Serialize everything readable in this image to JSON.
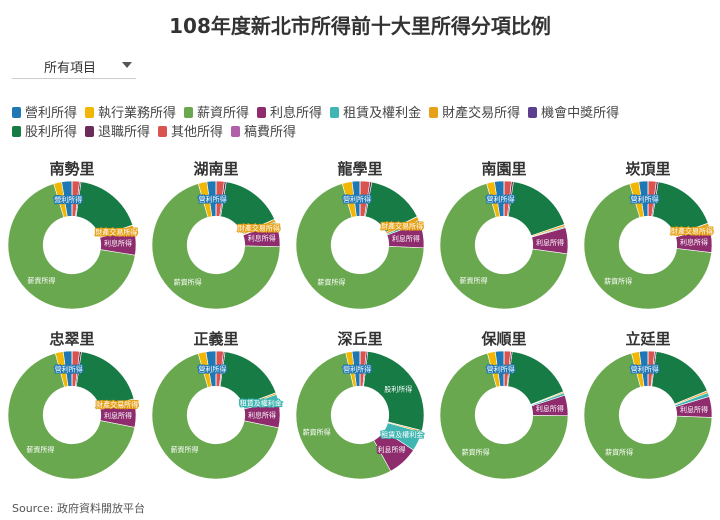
{
  "title": "108年度新北市所得前十大里所得分項比例",
  "dropdown": {
    "selected": "所有項目"
  },
  "source": "Source: 政府資料開放平台",
  "chart_data": {
    "type": "pie",
    "hole": 0.45,
    "legend_position": "top",
    "categories": [
      {
        "name": "營利所得",
        "color": "#1f77b4"
      },
      {
        "name": "執行業務所得",
        "color": "#f2b705"
      },
      {
        "name": "薪資所得",
        "color": "#6aa84f"
      },
      {
        "name": "利息所得",
        "color": "#8e2c6e"
      },
      {
        "name": "租賃及權利金",
        "color": "#3fb6b2"
      },
      {
        "name": "財產交易所得",
        "color": "#e6a118"
      },
      {
        "name": "機會中獎所得",
        "color": "#5b3f8e"
      },
      {
        "name": "股利所得",
        "color": "#167b45"
      },
      {
        "name": "退職所得",
        "color": "#6b2c5a"
      },
      {
        "name": "其他所得",
        "color": "#d9534f"
      },
      {
        "name": "稿費所得",
        "color": "#b05fa8"
      }
    ],
    "charts": [
      {
        "name": "南勢里",
        "values": [
          2.6,
          2.0,
          67.5,
          6.7,
          0.2,
          0.6,
          0.05,
          17.6,
          0.4,
          1.8,
          0.05
        ],
        "labels": [
          {
            "category": "營利所得",
            "text": "營利所得"
          },
          {
            "category": "薪資所得",
            "text": "薪資所得"
          },
          {
            "category": "利息所得",
            "text": "利息所得"
          },
          {
            "category": "財產交易所得",
            "text": "財產交易所得"
          }
        ]
      },
      {
        "name": "湖南里",
        "values": [
          2.3,
          2.2,
          70.0,
          6.0,
          0.3,
          0.7,
          0.05,
          15.8,
          0.5,
          2.0,
          0.05
        ],
        "labels": [
          {
            "category": "營利所得",
            "text": "營利所得"
          },
          {
            "category": "薪資所得",
            "text": "薪資所得"
          },
          {
            "category": "利息所得",
            "text": "利息所得"
          },
          {
            "category": "財產交易所得",
            "text": "財產交易所得"
          }
        ]
      },
      {
        "name": "龍學里",
        "values": [
          2.0,
          2.5,
          69.5,
          6.3,
          0.7,
          1.0,
          0.05,
          14.6,
          0.5,
          2.4,
          0.05
        ],
        "labels": [
          {
            "category": "營利所得",
            "text": "營利所得"
          },
          {
            "category": "薪資所得",
            "text": "薪資所得"
          },
          {
            "category": "利息所得",
            "text": "利息所得"
          },
          {
            "category": "財產交易所得",
            "text": "財產交易所得"
          }
        ]
      },
      {
        "name": "南園里",
        "values": [
          2.4,
          2.0,
          68.4,
          6.6,
          0.3,
          0.5,
          0.05,
          17.4,
          0.5,
          1.8,
          0.05
        ],
        "labels": [
          {
            "category": "營利所得",
            "text": "營利所得"
          },
          {
            "category": "薪資所得",
            "text": "薪資所得"
          },
          {
            "category": "利息所得",
            "text": "利息所得"
          }
        ]
      },
      {
        "name": "崁頂里",
        "values": [
          2.3,
          2.3,
          68.3,
          6.3,
          0.3,
          0.8,
          0.05,
          16.8,
          0.5,
          2.0,
          0.05
        ],
        "labels": [
          {
            "category": "營利所得",
            "text": "營利所得"
          },
          {
            "category": "薪資所得",
            "text": "薪資所得"
          },
          {
            "category": "利息所得",
            "text": "利息所得"
          },
          {
            "category": "財產交易所得",
            "text": "財產交易所得"
          }
        ]
      },
      {
        "name": "忠翠里",
        "values": [
          2.2,
          2.0,
          67.5,
          6.3,
          0.2,
          0.6,
          0.05,
          18.5,
          0.5,
          1.8,
          0.05
        ],
        "labels": [
          {
            "category": "營利所得",
            "text": "營利所得"
          },
          {
            "category": "薪資所得",
            "text": "薪資所得"
          },
          {
            "category": "利息所得",
            "text": "利息所得"
          },
          {
            "category": "財產交易所得",
            "text": "財產交易所得"
          }
        ]
      },
      {
        "name": "正義里",
        "values": [
          2.5,
          2.0,
          67.0,
          6.6,
          1.8,
          0.4,
          0.05,
          17.0,
          0.4,
          1.8,
          0.05
        ],
        "labels": [
          {
            "category": "營利所得",
            "text": "營利所得"
          },
          {
            "category": "薪資所得",
            "text": "薪資所得"
          },
          {
            "category": "利息所得",
            "text": "利息所得"
          },
          {
            "category": "租賃及權利金",
            "text": "租賃及權利金"
          }
        ]
      },
      {
        "name": "深丘里",
        "values": [
          2.0,
          1.6,
          54.5,
          7.8,
          4.9,
          0.4,
          0.05,
          27.0,
          0.4,
          1.5,
          0.05
        ],
        "labels": [
          {
            "category": "營利所得",
            "text": "營利所得"
          },
          {
            "category": "薪資所得",
            "text": "薪資所得"
          },
          {
            "category": "利息所得",
            "text": "利息所得"
          },
          {
            "category": "租賃及權利金",
            "text": "租賃及權利金"
          },
          {
            "category": "股利所得",
            "text": "股利所得"
          }
        ]
      },
      {
        "name": "保順里",
        "values": [
          2.2,
          2.0,
          70.7,
          5.2,
          0.6,
          0.3,
          0.05,
          17.0,
          0.4,
          1.6,
          0.05
        ],
        "labels": [
          {
            "category": "營利所得",
            "text": "營利所得"
          },
          {
            "category": "薪資所得",
            "text": "薪資所得"
          },
          {
            "category": "利息所得",
            "text": "利息所得"
          }
        ]
      },
      {
        "name": "立廷里",
        "values": [
          2.2,
          2.0,
          70.5,
          5.3,
          1.0,
          0.5,
          0.05,
          16.8,
          0.4,
          1.6,
          0.05
        ],
        "labels": [
          {
            "category": "營利所得",
            "text": "營利所得"
          },
          {
            "category": "薪資所得",
            "text": "薪資所得"
          },
          {
            "category": "利息所得",
            "text": "利息所得"
          }
        ]
      }
    ]
  }
}
